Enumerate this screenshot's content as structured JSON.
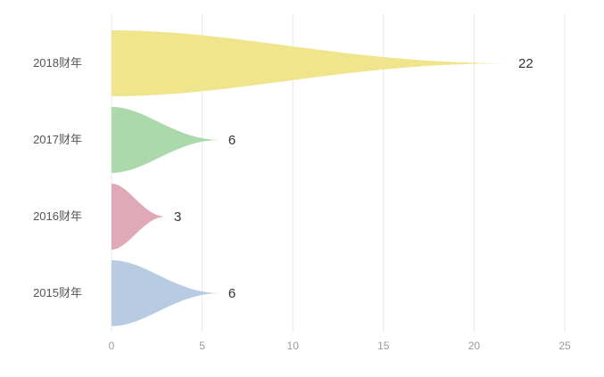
{
  "chart_data": {
    "type": "bar",
    "variant": "pictorial-teardrop",
    "orientation": "horizontal",
    "title": "",
    "xlabel": "",
    "ylabel": "",
    "categories": [
      "2018财年",
      "2017财年",
      "2016财年",
      "2015财年"
    ],
    "values": [
      22,
      6,
      3,
      6
    ],
    "data_labels": [
      "22",
      "6",
      "3",
      "6"
    ],
    "colors": [
      "#F0E58C",
      "#ABD9AB",
      "#DFA9B8",
      "#B7CCE2"
    ],
    "xlim": [
      0,
      25
    ],
    "x_ticks": [
      0,
      5,
      10,
      15,
      20,
      25
    ],
    "x_tick_labels": [
      "0",
      "5",
      "10",
      "15",
      "20",
      "25"
    ],
    "grid": "vertical",
    "legend": "none",
    "background": "#FFFFFF",
    "axis": {
      "grid_color": "#E7E7E7",
      "tick_label_color": "#999999",
      "category_label_color": "#555555",
      "value_label_color": "#333333"
    }
  }
}
